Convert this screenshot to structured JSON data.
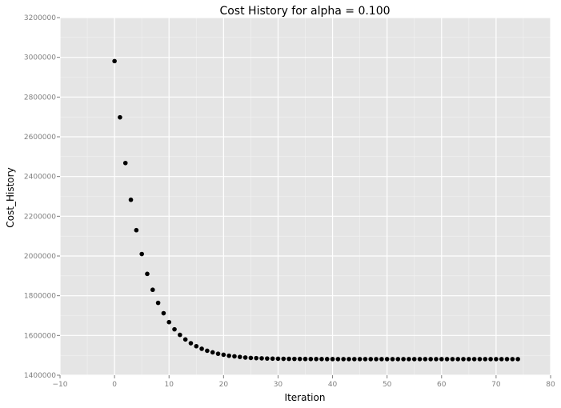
{
  "chart_data": {
    "type": "scatter",
    "title": "Cost History for alpha = 0.100",
    "xlabel": "Iteration",
    "ylabel": "Cost_History",
    "xlim": [
      -10,
      80
    ],
    "ylim": [
      1400000,
      3200000
    ],
    "x_ticks": [
      -10,
      0,
      10,
      20,
      30,
      40,
      50,
      60,
      70,
      80
    ],
    "x_tick_labels": [
      "−10",
      "0",
      "10",
      "20",
      "30",
      "40",
      "50",
      "60",
      "70",
      "80"
    ],
    "y_ticks": [
      1400000,
      1600000,
      1800000,
      2000000,
      2200000,
      2400000,
      2600000,
      2800000,
      3000000,
      3200000
    ],
    "y_tick_labels": [
      "1400000",
      "1600000",
      "1800000",
      "2000000",
      "2200000",
      "2400000",
      "2600000",
      "2800000",
      "3000000",
      "3200000"
    ],
    "grid": true,
    "legend": "none",
    "colors": {
      "panel": "#e5e5e5",
      "grid_major": "#ffffff",
      "grid_minor": "#f2f2f2",
      "point": "#000000",
      "tick_label": "#7f7f7f"
    },
    "series": [
      {
        "x": [
          0,
          1,
          2,
          3,
          4,
          5,
          6,
          7,
          8,
          9,
          10,
          11,
          12,
          13,
          14,
          15,
          16,
          17,
          18,
          19,
          20,
          21,
          22,
          23,
          24,
          25,
          26,
          27,
          28,
          29,
          30,
          31,
          32,
          33,
          34,
          35,
          36,
          37,
          38,
          39,
          40,
          41,
          42,
          43,
          44,
          45,
          46,
          47,
          48,
          49,
          50,
          51,
          52,
          53,
          54,
          55,
          56,
          57,
          58,
          59,
          60,
          61,
          62,
          63,
          64,
          65,
          66,
          67,
          68,
          69,
          70,
          71,
          72,
          73,
          74
        ],
        "y": [
          2981000,
          2698000,
          2468000,
          2283000,
          2130000,
          2010000,
          1910000,
          1830000,
          1764000,
          1712000,
          1667000,
          1631000,
          1603000,
          1580000,
          1561000,
          1546000,
          1533000,
          1523000,
          1515000,
          1508000,
          1503000,
          1498000,
          1495000,
          1492000,
          1489000,
          1487000,
          1486000,
          1485000,
          1484000,
          1483500,
          1483000,
          1482500,
          1482200,
          1482000,
          1481800,
          1481600,
          1481500,
          1481400,
          1481300,
          1481200,
          1481100,
          1481000,
          1481000,
          1481000,
          1481000,
          1481000,
          1481000,
          1481000,
          1481000,
          1481000,
          1481000,
          1481000,
          1481000,
          1481000,
          1481000,
          1481000,
          1481000,
          1481000,
          1481000,
          1481000,
          1481000,
          1481000,
          1481000,
          1481000,
          1481000,
          1481000,
          1481000,
          1481000,
          1481000,
          1481000,
          1481000,
          1481000,
          1481000,
          1481000,
          1481000
        ]
      }
    ]
  }
}
